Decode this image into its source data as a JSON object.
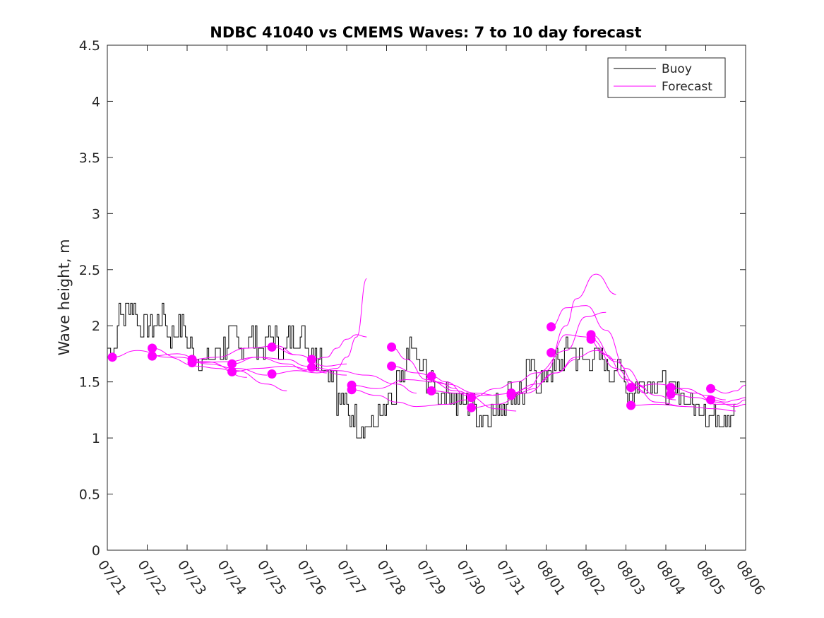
{
  "chart_data": {
    "type": "line",
    "title": "NDBC 41040 vs CMEMS Waves: 7 to 10 day forecast",
    "xlabel": "",
    "ylabel": "Wave height, m",
    "xlim": [
      "07/21",
      "08/06"
    ],
    "ylim": [
      0,
      4.5
    ],
    "x_ticks": [
      "07/21",
      "07/22",
      "07/23",
      "07/24",
      "07/25",
      "07/26",
      "07/27",
      "07/28",
      "07/29",
      "07/30",
      "07/31",
      "08/01",
      "08/02",
      "08/03",
      "08/04",
      "08/05",
      "08/06"
    ],
    "y_ticks": [
      "0",
      "0.5",
      "1",
      "1.5",
      "2",
      "2.5",
      "3",
      "3.5",
      "4",
      "4.5"
    ],
    "grid": false,
    "legend": {
      "position": "top-right",
      "entries": [
        "Buoy",
        "Forecast"
      ]
    },
    "colors": {
      "buoy": "#000000",
      "forecast": "#ff00ff"
    },
    "buoy": {
      "name": "Buoy",
      "x": [
        "07/21 00:00",
        "07/21 06:00",
        "07/21 12:00",
        "07/21 18:00",
        "07/22 00:00",
        "07/22 06:00",
        "07/22 12:00",
        "07/22 18:00",
        "07/23 00:00",
        "07/23 06:00",
        "07/23 12:00",
        "07/23 18:00",
        "07/24 00:00",
        "07/24 06:00",
        "07/24 12:00",
        "07/24 18:00",
        "07/25 00:00",
        "07/25 06:00",
        "07/25 12:00",
        "07/25 18:00",
        "07/26 00:00",
        "07/26 06:00",
        "07/26 12:00",
        "07/26 18:00",
        "07/27 00:00",
        "07/27 06:00",
        "07/27 12:00",
        "07/27 18:00",
        "07/28 00:00",
        "07/28 06:00",
        "07/28 12:00",
        "07/28 18:00",
        "07/29 00:00",
        "07/29 06:00",
        "07/29 12:00",
        "07/29 18:00",
        "07/30 00:00",
        "07/30 06:00",
        "07/30 12:00",
        "07/30 18:00",
        "07/31 00:00",
        "07/31 06:00",
        "07/31 12:00",
        "07/31 18:00",
        "08/01 00:00",
        "08/01 06:00",
        "08/01 12:00",
        "08/01 18:00",
        "08/02 00:00",
        "08/02 06:00",
        "08/02 12:00",
        "08/02 18:00",
        "08/03 00:00",
        "08/03 06:00",
        "08/03 12:00",
        "08/03 18:00",
        "08/04 00:00",
        "08/04 06:00",
        "08/04 12:00",
        "08/04 18:00",
        "08/05 00:00",
        "08/05 06:00",
        "08/05 12:00"
      ],
      "values": [
        1.8,
        2.1,
        2.2,
        2.0,
        2.0,
        2.1,
        1.9,
        2.0,
        1.8,
        1.7,
        1.7,
        1.8,
        1.9,
        1.8,
        1.9,
        1.8,
        1.9,
        1.8,
        1.9,
        1.9,
        1.8,
        1.7,
        1.6,
        1.3,
        1.2,
        1.1,
        1.1,
        1.2,
        1.3,
        1.5,
        1.8,
        1.6,
        1.5,
        1.4,
        1.4,
        1.3,
        1.3,
        1.2,
        1.2,
        1.3,
        1.4,
        1.4,
        1.6,
        1.5,
        1.6,
        1.7,
        1.8,
        1.7,
        1.7,
        1.7,
        1.6,
        1.6,
        1.4,
        1.5,
        1.5,
        1.5,
        1.4,
        1.4,
        1.3,
        1.3,
        1.2,
        1.2,
        1.2
      ]
    },
    "forecasts": [
      {
        "x": [
          "07/21 03:00",
          "07/21 18:00",
          "07/22 12:00",
          "07/23 06:00",
          "07/23 18:00",
          "07/24 12:00"
        ],
        "values": [
          1.72,
          1.78,
          1.72,
          1.64,
          1.62,
          1.54
        ]
      },
      {
        "x": [
          "07/22 03:00",
          "07/22 18:00",
          "07/23 12:00",
          "07/24 06:00",
          "07/25 00:00",
          "07/25 12:00"
        ],
        "values": [
          1.8,
          1.72,
          1.68,
          1.6,
          1.48,
          1.42
        ]
      },
      {
        "x": [
          "07/22 03:00",
          "07/22 18:00",
          "07/23 12:00",
          "07/24 06:00",
          "07/25 00:00"
        ],
        "values": [
          1.73,
          1.75,
          1.66,
          1.62,
          1.56
        ]
      },
      {
        "x": [
          "07/23 03:00",
          "07/23 18:00",
          "07/24 12:00",
          "07/25 06:00",
          "07/25 18:00"
        ],
        "values": [
          1.7,
          1.72,
          1.8,
          1.82,
          1.74
        ]
      },
      {
        "x": [
          "07/23 03:00",
          "07/24 00:00",
          "07/24 18:00",
          "07/25 12:00",
          "07/26 00:00"
        ],
        "values": [
          1.67,
          1.68,
          1.72,
          1.66,
          1.6
        ]
      },
      {
        "x": [
          "07/24 03:00",
          "07/24 18:00",
          "07/25 12:00",
          "07/26 00:00",
          "07/26 12:00"
        ],
        "values": [
          1.66,
          1.72,
          1.7,
          1.64,
          1.58
        ]
      },
      {
        "x": [
          "07/24 03:00",
          "07/24 18:00",
          "07/25 12:00",
          "07/26 06:00",
          "07/27 00:00"
        ],
        "values": [
          1.59,
          1.62,
          1.64,
          1.6,
          1.56
        ]
      },
      {
        "x": [
          "07/25 03:00",
          "07/25 18:00",
          "07/26 12:00",
          "07/27 00:00"
        ],
        "values": [
          1.81,
          1.74,
          1.64,
          1.66
        ]
      },
      {
        "x": [
          "07/25 03:00",
          "07/25 18:00",
          "07/26 06:00",
          "07/26 18:00",
          "07/27 00:00",
          "07/27 06:00",
          "07/27 12:00"
        ],
        "values": [
          1.57,
          1.6,
          1.58,
          1.62,
          1.72,
          1.9,
          2.42
        ]
      },
      {
        "x": [
          "07/26 03:00",
          "07/26 12:00",
          "07/26 18:00",
          "07/27 00:00",
          "07/27 06:00",
          "07/27 12:00"
        ],
        "values": [
          1.7,
          1.72,
          1.8,
          1.88,
          1.92,
          1.9
        ]
      },
      {
        "x": [
          "07/26 03:00",
          "07/26 18:00",
          "07/27 12:00",
          "07/28 06:00",
          "07/28 18:00"
        ],
        "values": [
          1.63,
          1.6,
          1.56,
          1.48,
          1.4
        ]
      },
      {
        "x": [
          "07/27 03:00",
          "07/27 18:00",
          "07/28 12:00",
          "07/29 06:00",
          "07/29 18:00"
        ],
        "values": [
          1.47,
          1.44,
          1.52,
          1.5,
          1.44
        ]
      },
      {
        "x": [
          "07/27 03:00",
          "07/27 18:00",
          "07/28 06:00",
          "07/28 18:00",
          "07/29 12:00",
          "07/30 00:00"
        ],
        "values": [
          1.43,
          1.38,
          1.32,
          1.28,
          1.3,
          1.34
        ]
      },
      {
        "x": [
          "07/28 03:00",
          "07/28 12:00",
          "07/29 00:00",
          "07/29 18:00",
          "07/30 06:00"
        ],
        "values": [
          1.81,
          1.7,
          1.52,
          1.42,
          1.36
        ]
      },
      {
        "x": [
          "07/28 03:00",
          "07/28 18:00",
          "07/29 12:00",
          "07/30 06:00",
          "07/30 18:00"
        ],
        "values": [
          1.64,
          1.58,
          1.48,
          1.4,
          1.38
        ]
      },
      {
        "x": [
          "07/29 03:00",
          "07/29 12:00",
          "07/30 00:00",
          "07/30 18:00",
          "07/31 06:00"
        ],
        "values": [
          1.55,
          1.5,
          1.38,
          1.26,
          1.24
        ]
      },
      {
        "x": [
          "07/29 03:00",
          "07/29 18:00",
          "07/30 12:00",
          "07/31 06:00",
          "07/31 18:00"
        ],
        "values": [
          1.42,
          1.4,
          1.38,
          1.4,
          1.44
        ]
      },
      {
        "x": [
          "07/30 03:00",
          "07/30 18:00",
          "07/31 06:00",
          "07/31 18:00",
          "08/01 12:00",
          "08/02 00:00",
          "08/02 12:00"
        ],
        "values": [
          1.36,
          1.44,
          1.5,
          1.58,
          1.78,
          2.08,
          2.12
        ]
      },
      {
        "x": [
          "07/30 03:00",
          "07/30 18:00",
          "07/31 12:00",
          "08/01 06:00",
          "08/01 18:00"
        ],
        "values": [
          1.27,
          1.3,
          1.4,
          1.58,
          1.7
        ]
      },
      {
        "x": [
          "07/31 03:00",
          "07/31 12:00",
          "08/01 00:00",
          "08/01 12:00",
          "08/01 18:00",
          "08/02 06:00",
          "08/02 18:00"
        ],
        "values": [
          1.38,
          1.44,
          1.6,
          2.0,
          2.24,
          2.46,
          2.28
        ]
      },
      {
        "x": [
          "07/31 03:00",
          "07/31 18:00",
          "08/01 06:00",
          "08/01 18:00",
          "08/02 06:00",
          "08/02 18:00"
        ],
        "values": [
          1.4,
          1.48,
          1.58,
          1.72,
          1.78,
          1.7
        ]
      },
      {
        "x": [
          "08/01 03:00",
          "08/01 12:00",
          "08/02 00:00",
          "08/02 12:00",
          "08/03 00:00",
          "08/03 12:00"
        ],
        "values": [
          1.99,
          2.16,
          2.18,
          1.96,
          1.62,
          1.44
        ]
      },
      {
        "x": [
          "08/01 03:00",
          "08/01 12:00",
          "08/02 00:00",
          "08/02 12:00",
          "08/03 00:00",
          "08/03 12:00"
        ],
        "values": [
          1.76,
          1.92,
          1.9,
          1.74,
          1.52,
          1.4
        ]
      },
      {
        "x": [
          "08/02 03:00",
          "08/02 18:00",
          "08/03 06:00",
          "08/03 18:00",
          "08/04 06:00"
        ],
        "values": [
          1.92,
          1.68,
          1.48,
          1.38,
          1.34
        ]
      },
      {
        "x": [
          "08/02 03:00",
          "08/02 18:00",
          "08/03 06:00",
          "08/03 18:00",
          "08/04 12:00"
        ],
        "values": [
          1.88,
          1.62,
          1.44,
          1.32,
          1.28
        ]
      },
      {
        "x": [
          "08/03 03:00",
          "08/03 18:00",
          "08/04 12:00",
          "08/05 00:00",
          "08/05 12:00"
        ],
        "values": [
          1.45,
          1.48,
          1.44,
          1.38,
          1.34
        ]
      },
      {
        "x": [
          "08/03 03:00",
          "08/03 18:00",
          "08/04 12:00",
          "08/05 06:00",
          "08/05 18:00"
        ],
        "values": [
          1.29,
          1.3,
          1.28,
          1.26,
          1.24
        ]
      },
      {
        "x": [
          "08/04 03:00",
          "08/04 18:00",
          "08/05 06:00",
          "08/05 18:00",
          "08/06 00:00"
        ],
        "values": [
          1.45,
          1.4,
          1.3,
          1.3,
          1.34
        ]
      },
      {
        "x": [
          "08/04 03:00",
          "08/04 18:00",
          "08/05 06:00",
          "08/05 18:00",
          "08/06 00:00"
        ],
        "values": [
          1.39,
          1.36,
          1.32,
          1.28,
          1.3
        ]
      },
      {
        "x": [
          "08/05 03:00",
          "08/05 12:00",
          "08/05 18:00",
          "08/06 00:00"
        ],
        "values": [
          1.44,
          1.4,
          1.42,
          1.47
        ]
      },
      {
        "x": [
          "08/05 03:00",
          "08/05 12:00",
          "08/05 18:00",
          "08/06 00:00"
        ],
        "values": [
          1.34,
          1.32,
          1.34,
          1.36
        ]
      }
    ]
  }
}
